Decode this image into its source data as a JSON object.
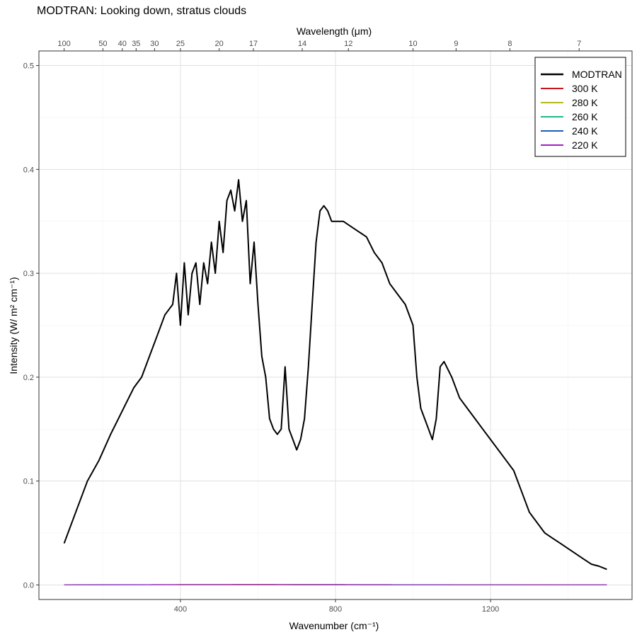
{
  "chart_data": {
    "type": "line",
    "title": "MODTRAN: Looking down, stratus clouds",
    "xlabel": "Wavenumber (cm⁻¹)",
    "ylabel": "Intensity (W/ m² cm⁻¹)",
    "x2label": "Wavelength (μm)",
    "xlim": [
      100,
      1500
    ],
    "ylim": [
      0,
      0.5
    ],
    "x_ticks": [
      400,
      800,
      1200
    ],
    "y_ticks": [
      0.0,
      0.1,
      0.2,
      0.3,
      0.4,
      0.5
    ],
    "x2_ticks": [
      100,
      50,
      40,
      35,
      30,
      25,
      20,
      17,
      14,
      12,
      10,
      9,
      8,
      7
    ],
    "grid": true,
    "legend": {
      "position": "top-right",
      "entries": [
        "MODTRAN",
        "300 K",
        "280 K",
        "260 K",
        "240 K",
        "220 K"
      ]
    },
    "series": [
      {
        "name": "MODTRAN",
        "color": "#000000",
        "x": [
          100,
          130,
          160,
          190,
          220,
          240,
          260,
          280,
          300,
          320,
          340,
          360,
          380,
          390,
          400,
          410,
          420,
          430,
          440,
          450,
          460,
          470,
          480,
          490,
          500,
          510,
          520,
          530,
          540,
          550,
          560,
          570,
          580,
          590,
          600,
          610,
          620,
          630,
          640,
          650,
          660,
          670,
          680,
          690,
          700,
          710,
          720,
          730,
          740,
          750,
          760,
          770,
          780,
          790,
          800,
          820,
          840,
          860,
          880,
          900,
          920,
          940,
          960,
          980,
          1000,
          1010,
          1020,
          1030,
          1040,
          1050,
          1060,
          1070,
          1080,
          1100,
          1120,
          1140,
          1160,
          1180,
          1200,
          1220,
          1240,
          1260,
          1280,
          1300,
          1320,
          1340,
          1360,
          1380,
          1400,
          1420,
          1440,
          1460,
          1480,
          1500
        ],
        "y": [
          0.04,
          0.07,
          0.1,
          0.12,
          0.145,
          0.16,
          0.175,
          0.19,
          0.2,
          0.22,
          0.24,
          0.26,
          0.27,
          0.3,
          0.25,
          0.31,
          0.26,
          0.3,
          0.31,
          0.27,
          0.31,
          0.29,
          0.33,
          0.3,
          0.35,
          0.32,
          0.37,
          0.38,
          0.36,
          0.39,
          0.35,
          0.37,
          0.29,
          0.33,
          0.27,
          0.22,
          0.2,
          0.16,
          0.15,
          0.145,
          0.15,
          0.21,
          0.15,
          0.14,
          0.13,
          0.14,
          0.16,
          0.21,
          0.27,
          0.33,
          0.36,
          0.365,
          0.36,
          0.35,
          0.35,
          0.35,
          0.345,
          0.34,
          0.335,
          0.32,
          0.31,
          0.29,
          0.28,
          0.27,
          0.25,
          0.2,
          0.17,
          0.16,
          0.15,
          0.14,
          0.16,
          0.21,
          0.215,
          0.2,
          0.18,
          0.17,
          0.16,
          0.15,
          0.14,
          0.13,
          0.12,
          0.11,
          0.09,
          0.07,
          0.06,
          0.05,
          0.045,
          0.04,
          0.035,
          0.03,
          0.025,
          0.02,
          0.018,
          0.015
        ]
      },
      {
        "name": "300 K",
        "color": "#c4161c",
        "temperature": 300
      },
      {
        "name": "280 K",
        "color": "#b5b81a",
        "temperature": 280
      },
      {
        "name": "260 K",
        "color": "#1fb883",
        "temperature": 260
      },
      {
        "name": "240 K",
        "color": "#1a5fb4",
        "temperature": 240
      },
      {
        "name": "220 K",
        "color": "#a51fc4",
        "temperature": 220
      }
    ]
  }
}
